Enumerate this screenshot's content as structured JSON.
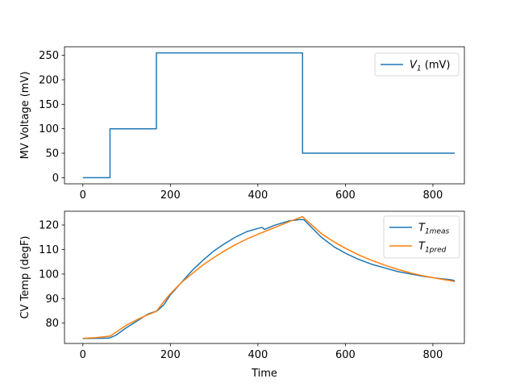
{
  "chart_data": [
    {
      "type": "line",
      "ylabel": "MV Voltage (mV)",
      "xlabel": "",
      "xlim": [
        -42,
        872
      ],
      "ylim": [
        -12.5,
        267.5
      ],
      "xticks": [
        0,
        200,
        400,
        600,
        800
      ],
      "yticks": [
        0,
        50,
        100,
        150,
        200,
        250
      ],
      "grid": false,
      "legend_position": "top-right",
      "series": [
        {
          "name_base": "V",
          "name_sub": "1",
          "name_suffix": " (mV)",
          "color": "#1f77b4",
          "step": true,
          "x": [
            0,
            62,
            62,
            168,
            168,
            502,
            502,
            850
          ],
          "y": [
            0,
            0,
            100,
            100,
            255,
            255,
            50,
            50
          ]
        }
      ]
    },
    {
      "type": "line",
      "ylabel": "CV Temp (degF)",
      "xlabel": "Time",
      "xlim": [
        -42,
        872
      ],
      "ylim": [
        71.7,
        125.6
      ],
      "xticks": [
        0,
        200,
        400,
        600,
        800
      ],
      "yticks": [
        80,
        90,
        100,
        110,
        120
      ],
      "grid": false,
      "legend_position": "top-right",
      "series": [
        {
          "name_base": "T",
          "name_sub": "1meas",
          "name_suffix": "",
          "color": "#1f77b4",
          "step": false,
          "x": [
            0,
            30,
            60,
            75,
            100,
            125,
            150,
            170,
            185,
            200,
            225,
            250,
            275,
            300,
            325,
            350,
            375,
            400,
            410,
            415,
            440,
            470,
            495,
            505,
            520,
            545,
            575,
            600,
            630,
            660,
            690,
            720,
            750,
            780,
            810,
            840,
            850
          ],
          "y": [
            73.7,
            73.8,
            73.9,
            75.0,
            78.2,
            81.0,
            83.8,
            85.0,
            87.5,
            91.5,
            96.5,
            101.5,
            105.7,
            109.5,
            112.5,
            115.2,
            117.3,
            118.6,
            119.0,
            118.2,
            120.0,
            121.6,
            122.2,
            122.2,
            119.5,
            115.0,
            111.0,
            108.5,
            106.0,
            104.0,
            102.5,
            101.0,
            100.0,
            99.0,
            98.3,
            97.7,
            97.3
          ]
        },
        {
          "name_base": "T",
          "name_sub": "1pred",
          "name_suffix": "",
          "color": "#ff7f0e",
          "step": false,
          "x": [
            0,
            30,
            62,
            80,
            100,
            125,
            150,
            168,
            185,
            200,
            225,
            250,
            275,
            300,
            325,
            350,
            375,
            400,
            425,
            450,
            475,
            502,
            520,
            545,
            575,
            600,
            630,
            660,
            690,
            720,
            750,
            780,
            810,
            840,
            850
          ],
          "y": [
            73.8,
            74.1,
            74.7,
            76.8,
            79.2,
            81.5,
            83.5,
            84.8,
            88.8,
            92.0,
            96.5,
            100.2,
            103.8,
            106.8,
            109.6,
            112.1,
            114.3,
            116.2,
            118.0,
            119.8,
            121.6,
            123.4,
            120.5,
            116.5,
            113.0,
            110.5,
            107.8,
            105.6,
            103.6,
            101.9,
            100.4,
            99.2,
            98.2,
            97.3,
            96.9
          ]
        }
      ]
    }
  ]
}
